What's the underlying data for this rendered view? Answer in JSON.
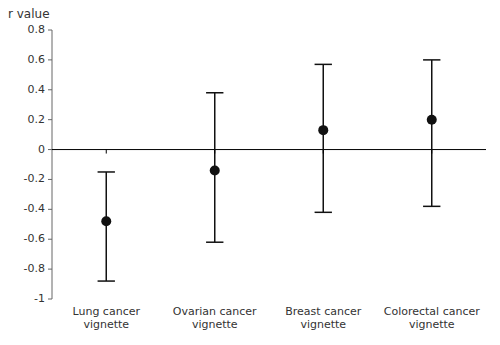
{
  "chart_data": {
    "type": "errorbar",
    "y_label": "r value",
    "categories": [
      "Lung cancer\nvignette",
      "Ovarian cancer\nvignette",
      "Breast cancer\nvignette",
      "Colorectal cancer\nvignette"
    ],
    "values": [
      -0.48,
      -0.14,
      0.13,
      0.2
    ],
    "ci_low": [
      -0.88,
      -0.62,
      -0.42,
      -0.38
    ],
    "ci_high": [
      -0.15,
      0.38,
      0.57,
      0.6
    ],
    "baseline": 0,
    "ylim": [
      -1,
      0.8
    ],
    "yticks": [
      -1,
      -0.8,
      -0.6,
      -0.4,
      -0.2,
      0,
      0.2,
      0.4,
      0.6,
      0.8
    ],
    "color": "#111111"
  }
}
